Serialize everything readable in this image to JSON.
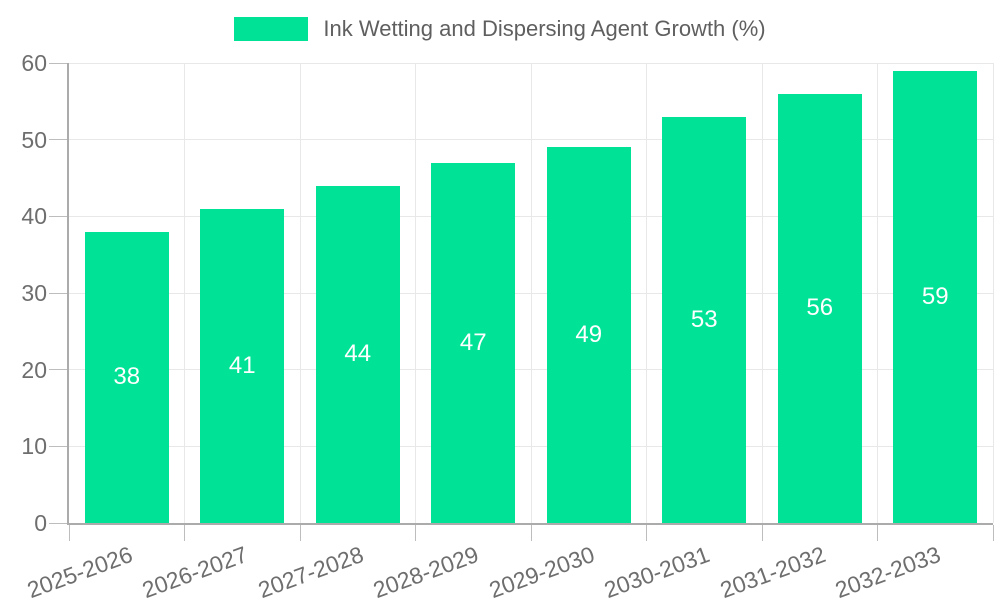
{
  "chart_data": {
    "type": "bar",
    "title": "Ink Wetting and Dispersing Agent Growth (%)",
    "categories": [
      "2025-2026",
      "2026-2027",
      "2027-2028",
      "2028-2029",
      "2029-2030",
      "2030-2031",
      "2031-2032",
      "2032-2033"
    ],
    "series": [
      {
        "name": "Ink Wetting and Dispersing Agent Growth (%)",
        "values": [
          38,
          41,
          44,
          47,
          49,
          53,
          56,
          59
        ]
      }
    ],
    "xlabel": "",
    "ylabel": "",
    "ylim": [
      0,
      60
    ],
    "yticks": [
      0,
      10,
      20,
      30,
      40,
      50,
      60
    ],
    "grid": true,
    "x_label_rotation_deg": -20,
    "value_labels_position": "inside-center",
    "legend_position": "top-center"
  },
  "legend": {
    "label": "Ink Wetting and Dispersing Agent Growth (%)"
  },
  "colors": {
    "background": "#ffffff",
    "bar": "#00E396",
    "grid": "#e8e8e8",
    "axis": "#ababab",
    "tick": "#bdbdbd",
    "axis_text": "#6e6e6e",
    "legend_text": "#5f5f5f",
    "value_text": "#ffffff"
  }
}
